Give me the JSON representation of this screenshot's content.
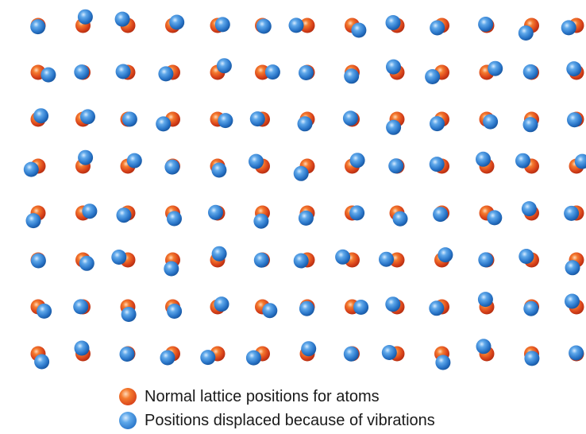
{
  "legend": {
    "items": [
      {
        "key": "normal",
        "label": "Normal lattice positions for atoms",
        "color": "#e2501e"
      },
      {
        "key": "displaced",
        "label": "Positions displaced because of vibrations",
        "color": "#2f7fd3"
      }
    ]
  },
  "lattice": {
    "rows": 8,
    "columns": 13,
    "atom_colors": {
      "normal": "#e2501e",
      "displaced": "#2f7fd3"
    }
  }
}
